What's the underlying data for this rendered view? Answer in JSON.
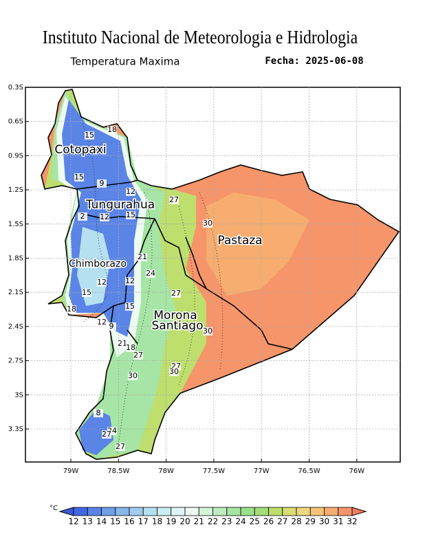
{
  "header": {
    "title": "Instituto Nacional de Meteorologia e Hidrologia",
    "subtitle": "Temperatura Maxima",
    "date": "Fecha: 2025-06-08"
  },
  "map": {
    "lat_ticks": [
      "0.3S",
      "0.6S",
      "0.9S",
      "1.2S",
      "1.5S",
      "1.8S",
      "2.1S",
      "2.4S",
      "2.7S",
      "3S",
      "3.3S"
    ],
    "lon_ticks": [
      "79W",
      "78.5W",
      "78W",
      "77.5W",
      "77W",
      "76.5W",
      "76W"
    ],
    "provinces": [
      "Cotopaxi",
      "Tungurahua",
      "Chimborazo",
      "Pastaza",
      "Morona",
      "Santiago"
    ],
    "contour_labels": [
      15,
      18,
      15,
      9,
      12,
      27,
      12,
      15,
      2,
      30,
      21,
      18,
      12,
      24,
      12,
      15,
      27,
      18,
      15,
      12,
      9,
      30,
      21,
      18,
      27,
      27,
      30,
      30,
      8,
      24,
      27,
      27
    ]
  },
  "colorbar": {
    "unit": "°C",
    "ticks": [
      12,
      13,
      14,
      15,
      16,
      17,
      18,
      19,
      20,
      21,
      22,
      23,
      24,
      25,
      26,
      27,
      28,
      29,
      30,
      31,
      32
    ],
    "colors": [
      "#3a5ad6",
      "#4169e1",
      "#5a84e6",
      "#6f9ee8",
      "#87b6ea",
      "#9fcdeb",
      "#b5e0f0",
      "#cbeef5",
      "#dff6f6",
      "#eefbf3",
      "#d6f5d8",
      "#bdedc0",
      "#a6e5a5",
      "#98e08a",
      "#a5dc79",
      "#bede6e",
      "#d8dc75",
      "#ecd77c",
      "#f5c477",
      "#f7ad6f",
      "#f6946a",
      "#f47c64"
    ]
  }
}
